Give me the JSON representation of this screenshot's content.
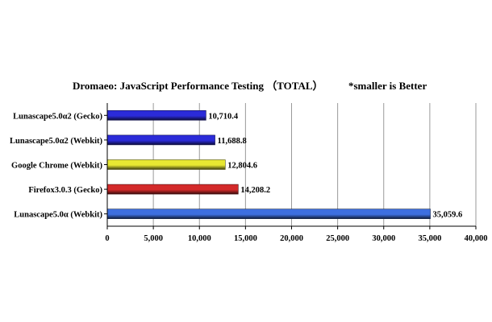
{
  "chart_data": {
    "type": "bar",
    "orientation": "horizontal",
    "title": "Dromaeo: JavaScript Performance Testing （TOTAL）",
    "note": "*smaller is Better",
    "categories": [
      "Lunascape5.0α2 (Gecko)",
      "Lunascape5.0α2 (Webkit)",
      "Google Chrome (Webkit)",
      "Firefox3.0.3 (Gecko)",
      "Lunascape5.0α (Webkit)"
    ],
    "values": [
      10710.4,
      11688.8,
      12804.6,
      14208.2,
      35059.6
    ],
    "value_labels": [
      "10,710.4",
      "11,688.8",
      "12,804.6",
      "14,208.2",
      "35,059.6"
    ],
    "bar_colors": [
      "#2b2bd9",
      "#2b2bd9",
      "#e8e832",
      "#d42a2a",
      "#3d6fe0"
    ],
    "xlim": [
      0,
      40000
    ],
    "x_ticks": [
      0,
      5000,
      10000,
      15000,
      20000,
      25000,
      30000,
      35000,
      40000
    ],
    "x_tick_labels": [
      "0",
      "5,000",
      "10,000",
      "15,000",
      "20,000",
      "25,000",
      "30,000",
      "35,000",
      "40,000"
    ],
    "grid": "vertical",
    "legend": "none"
  }
}
